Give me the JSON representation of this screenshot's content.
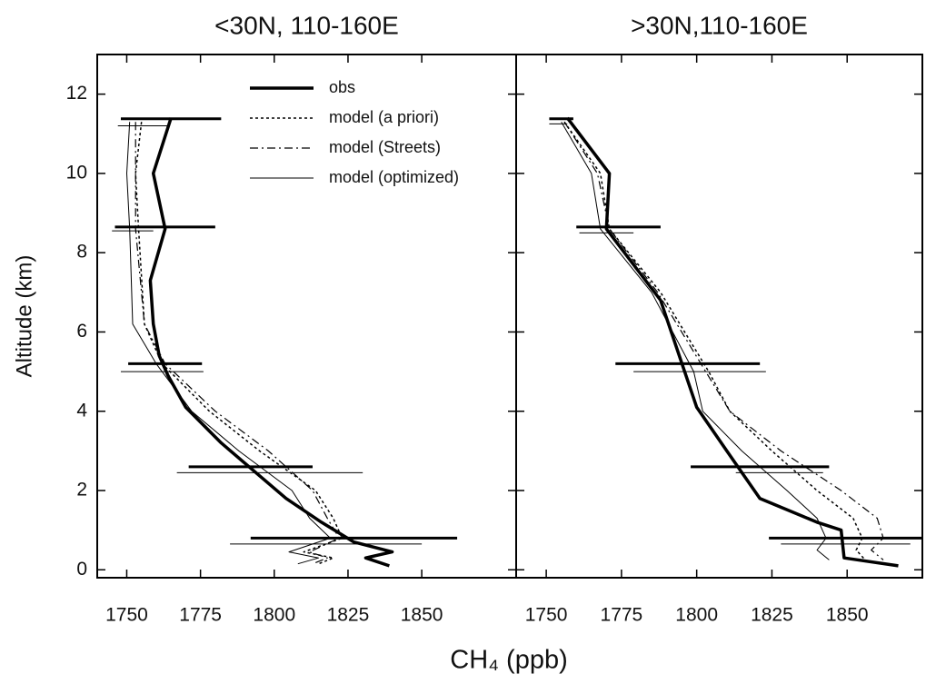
{
  "xlabel": "CH₄ (ppb)",
  "ylabel": "Altitude (km)",
  "chart_data": [
    {
      "type": "profile",
      "title": "<30N, 110-160E",
      "legend": "upper right",
      "xlim": [
        1740,
        1882
      ],
      "ylim": [
        -0.2,
        13
      ],
      "xticks": [
        1750,
        1775,
        1800,
        1825,
        1850
      ],
      "yticks": [
        0,
        2,
        4,
        6,
        8,
        10,
        12
      ],
      "series": [
        {
          "name": "obs",
          "color": "#000000",
          "style": "solid",
          "width": 3.5,
          "altitude": [
            11.4,
            10,
            8.6,
            7.3,
            6.2,
            5.4,
            4.9,
            4.1,
            3.2,
            2.5,
            1.8,
            1.2,
            0.7,
            0.45,
            0.3,
            0.1
          ],
          "values": [
            1765,
            1759,
            1763,
            1758,
            1759,
            1761,
            1764,
            1770,
            1782,
            1793,
            1804,
            1816,
            1827,
            1840,
            1831,
            1839
          ]
        },
        {
          "name": "model (a priori)",
          "color": "#000000",
          "style": "dotted",
          "width": 1.5,
          "altitude": [
            11.3,
            10,
            8.6,
            6.2,
            5.2,
            4,
            3,
            2,
            1.3,
            0.8,
            0.45,
            0.3,
            0.15
          ],
          "values": [
            1755,
            1753,
            1754,
            1756,
            1762,
            1778,
            1795,
            1814,
            1820,
            1823,
            1810,
            1820,
            1815
          ]
        },
        {
          "name": "model (Streets)",
          "color": "#000000",
          "style": "dashdot",
          "width": 1.2,
          "altitude": [
            11.3,
            10,
            8.6,
            6.2,
            5.2,
            4,
            3,
            2,
            1.3,
            0.8,
            0.45,
            0.3,
            0.15
          ],
          "values": [
            1753,
            1753,
            1753,
            1756,
            1763,
            1780,
            1798,
            1813,
            1818,
            1822,
            1812,
            1818,
            1813
          ]
        },
        {
          "name": "model (optimized)",
          "color": "#000000",
          "style": "solid",
          "width": 1,
          "altitude": [
            11.3,
            10,
            8.6,
            6.2,
            5.2,
            4,
            3,
            2,
            1.3,
            0.8,
            0.45,
            0.3,
            0.15
          ],
          "values": [
            1751,
            1750,
            1751,
            1752,
            1760,
            1772,
            1788,
            1806,
            1812,
            1819,
            1805,
            1815,
            1808
          ]
        }
      ],
      "errorbars": [
        {
          "width": 3,
          "altitude": [
            11.38,
            8.65,
            5.2,
            2.6,
            0.8
          ],
          "values": [
            1765,
            1763,
            1763,
            1792,
            1827
          ],
          "xerr": [
            17,
            17,
            12.5,
            21,
            35
          ]
        },
        {
          "width": 1,
          "altitude": [
            11.2,
            8.55,
            5.0,
            2.45,
            0.65
          ],
          "values": [
            1755.5,
            1752,
            1762,
            1798.5,
            1817.5
          ],
          "xerr": [
            8.5,
            7,
            14,
            31.5,
            32.5
          ]
        }
      ]
    },
    {
      "type": "profile",
      "title": ">30N,110-160E",
      "xlim": [
        1740,
        1875
      ],
      "ylim": [
        -0.2,
        13
      ],
      "xticks": [
        1750,
        1775,
        1800,
        1825,
        1850
      ],
      "yticks": [
        0,
        2,
        4,
        6,
        8,
        10,
        12
      ],
      "series": [
        {
          "color": "#000000",
          "style": "solid",
          "width": 3.5,
          "altitude": [
            11.4,
            10,
            8.6,
            6.8,
            5,
            4.1,
            3,
            1.8,
            1.2,
            1,
            0.3,
            0.1
          ],
          "values": [
            1757,
            1771,
            1770,
            1788,
            1796,
            1800,
            1810,
            1821,
            1840,
            1848,
            1849,
            1867
          ]
        },
        {
          "color": "#000000",
          "style": "dotted",
          "width": 1.5,
          "altitude": [
            11.3,
            10,
            8.6,
            7,
            5,
            4,
            3,
            2,
            1.3,
            0.8,
            0.5,
            0.25
          ],
          "values": [
            1756,
            1768,
            1771,
            1788,
            1804,
            1811,
            1825,
            1840,
            1852,
            1855,
            1853,
            1856
          ]
        },
        {
          "color": "#000000",
          "style": "dashdot",
          "width": 1.2,
          "altitude": [
            11.3,
            10,
            8.6,
            7,
            5,
            4,
            3,
            2,
            1.3,
            0.8,
            0.5,
            0.25
          ],
          "values": [
            1756,
            1767,
            1771,
            1787,
            1803,
            1811,
            1828,
            1848,
            1860,
            1862,
            1858,
            1862
          ]
        },
        {
          "color": "#000000",
          "style": "solid",
          "width": 1,
          "altitude": [
            11.3,
            10,
            8.6,
            7,
            5,
            4,
            3,
            2,
            1.3,
            0.8,
            0.5,
            0.25
          ],
          "values": [
            1755,
            1765,
            1768,
            1785,
            1799,
            1802,
            1815,
            1830,
            1840,
            1843,
            1840,
            1844
          ]
        }
      ],
      "errorbars": [
        {
          "width": 3,
          "altitude": [
            11.38,
            8.65,
            5.2,
            2.6,
            0.8
          ],
          "values": [
            1755,
            1774,
            1797,
            1821,
            1850
          ],
          "xerr": [
            4,
            14,
            24,
            23,
            26
          ]
        },
        {
          "width": 1,
          "altitude": [
            11.25,
            8.5,
            5.0,
            2.45,
            0.65
          ],
          "values": [
            1754,
            1770,
            1801,
            1827.5,
            1849.5
          ],
          "xerr": [
            3,
            9,
            22,
            14.5,
            21.5
          ]
        }
      ]
    }
  ]
}
